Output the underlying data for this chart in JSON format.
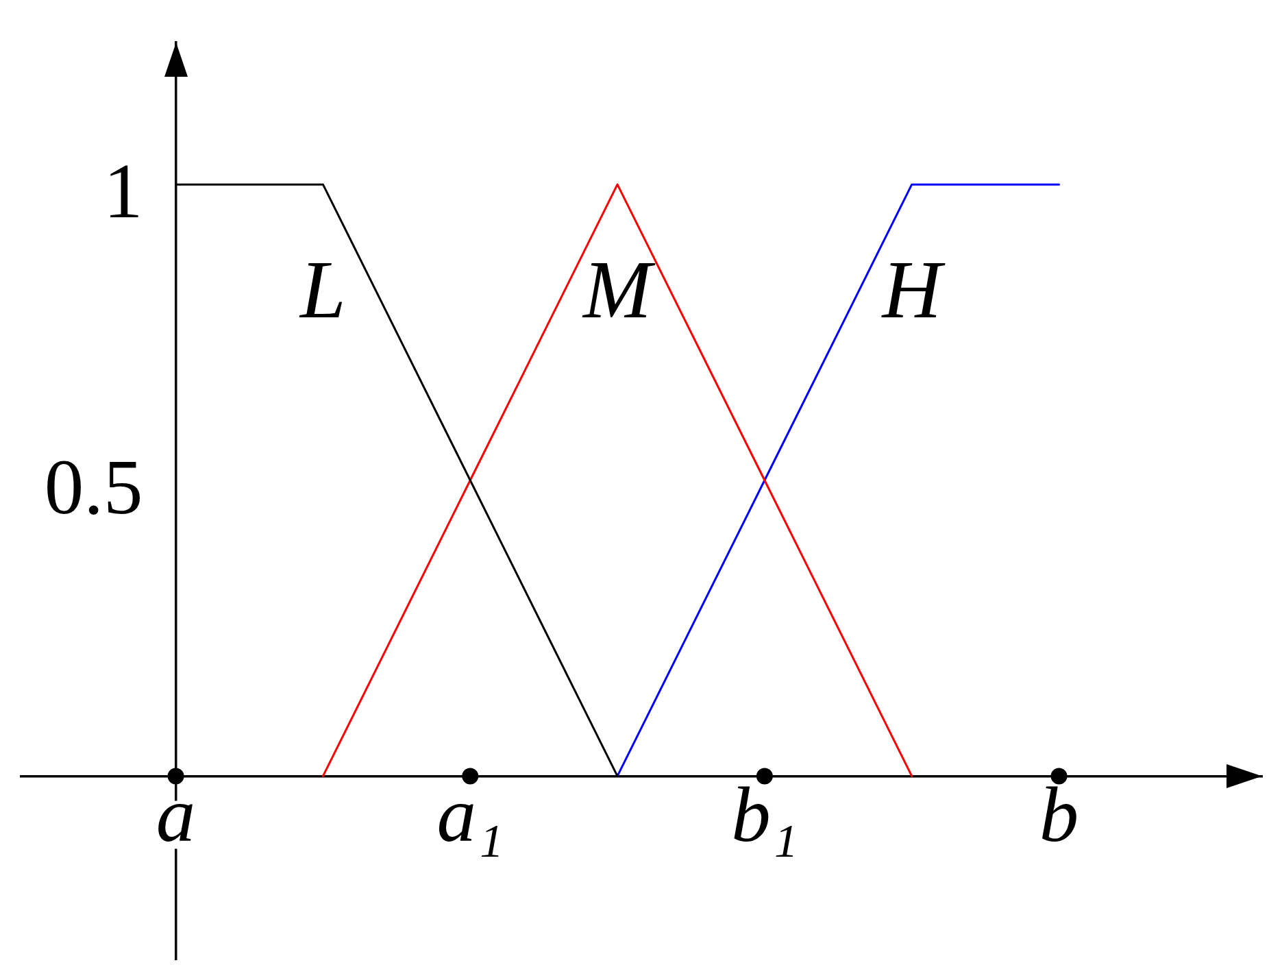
{
  "chart_data": {
    "type": "line",
    "categories": [
      "a",
      null,
      "a₁",
      null,
      "b₁",
      null,
      "b"
    ],
    "series": [
      {
        "name": "L",
        "color": "#000000",
        "values": [
          1,
          1,
          0.5,
          0,
          null,
          null,
          null
        ]
      },
      {
        "name": "M",
        "color": "#ff0000",
        "values": [
          null,
          0,
          0.5,
          1,
          0.5,
          0,
          null
        ]
      },
      {
        "name": "H",
        "color": "#0000ff",
        "values": [
          null,
          null,
          null,
          0,
          0.5,
          1,
          1
        ]
      },
      {
        "type": "scatter",
        "color": "#000000",
        "marker": "circle",
        "values": [
          0,
          null,
          0,
          null,
          0,
          null,
          0
        ]
      }
    ],
    "ylim": [
      -0.31,
      1.24
    ],
    "yticks": [
      0.5,
      1
    ],
    "marker": "none",
    "line_style": "solid",
    "grid": false,
    "legend": false
  }
}
